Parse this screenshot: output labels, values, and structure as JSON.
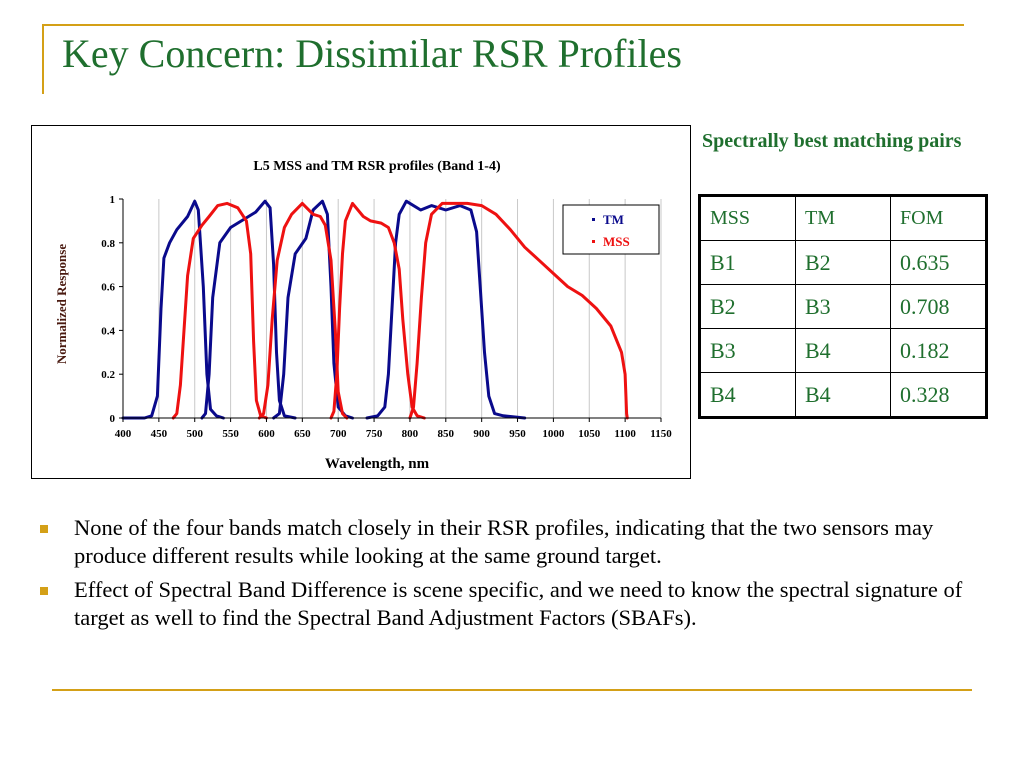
{
  "slide": {
    "title": "Key Concern: Dissimilar RSR Profiles",
    "accent_color": "#d4a017",
    "title_color": "#1f6f2e"
  },
  "table": {
    "caption": "Spectrally best matching pairs",
    "headers": [
      "MSS",
      "TM",
      "FOM"
    ],
    "rows": [
      [
        "B1",
        "B2",
        "0.635"
      ],
      [
        "B2",
        "B3",
        "0.708"
      ],
      [
        "B3",
        "B4",
        "0.182"
      ],
      [
        "B4",
        "B4",
        "0.328"
      ]
    ]
  },
  "bullets": [
    "None of the four bands match closely in their RSR profiles, indicating that the two sensors may produce different results while looking at the same ground target.",
    "Effect of Spectral Band Difference is scene specific, and we need to know the spectral signature of target as well to find the Spectral Band Adjustment Factors (SBAFs)."
  ],
  "chart_data": {
    "type": "line",
    "title": "L5 MSS and TM RSR profiles (Band 1-4)",
    "xlabel": "Wavelength, nm",
    "ylabel": "Normalized Response",
    "xlim": [
      400,
      1150
    ],
    "ylim": [
      0,
      1
    ],
    "xticks": [
      400,
      450,
      500,
      550,
      600,
      650,
      700,
      750,
      800,
      850,
      900,
      950,
      1000,
      1050,
      1100,
      1150
    ],
    "yticks": [
      0,
      0.2,
      0.4,
      0.6,
      0.8,
      1
    ],
    "ytick_labels": [
      "0",
      "0.2",
      "0.4",
      "0.6",
      "0.8",
      "1"
    ],
    "grid": "vertical",
    "legend": "top-right",
    "series": [
      {
        "name": "TM",
        "color": "#0a0a8c",
        "bands": [
          [
            [
              400,
              0
            ],
            [
              430,
              0
            ],
            [
              440,
              0.01
            ],
            [
              448,
              0.1
            ],
            [
              453,
              0.5
            ],
            [
              457,
              0.73
            ],
            [
              465,
              0.8
            ],
            [
              475,
              0.86
            ],
            [
              490,
              0.92
            ],
            [
              500,
              0.99
            ],
            [
              505,
              0.95
            ],
            [
              512,
              0.6
            ],
            [
              517,
              0.2
            ],
            [
              522,
              0.04
            ],
            [
              530,
              0.01
            ],
            [
              540,
              0
            ]
          ],
          [
            [
              510,
              0
            ],
            [
              515,
              0.02
            ],
            [
              520,
              0.2
            ],
            [
              525,
              0.55
            ],
            [
              535,
              0.8
            ],
            [
              550,
              0.87
            ],
            [
              565,
              0.9
            ],
            [
              585,
              0.94
            ],
            [
              598,
              0.99
            ],
            [
              605,
              0.96
            ],
            [
              610,
              0.7
            ],
            [
              614,
              0.3
            ],
            [
              618,
              0.08
            ],
            [
              625,
              0.01
            ],
            [
              640,
              0
            ]
          ],
          [
            [
              610,
              0
            ],
            [
              618,
              0.02
            ],
            [
              624,
              0.2
            ],
            [
              630,
              0.55
            ],
            [
              640,
              0.75
            ],
            [
              655,
              0.82
            ],
            [
              665,
              0.95
            ],
            [
              678,
              0.99
            ],
            [
              685,
              0.93
            ],
            [
              690,
              0.6
            ],
            [
              694,
              0.25
            ],
            [
              700,
              0.05
            ],
            [
              710,
              0.01
            ],
            [
              720,
              0
            ]
          ],
          [
            [
              740,
              0
            ],
            [
              755,
              0.01
            ],
            [
              765,
              0.05
            ],
            [
              770,
              0.2
            ],
            [
              775,
              0.5
            ],
            [
              780,
              0.8
            ],
            [
              785,
              0.93
            ],
            [
              795,
              0.99
            ],
            [
              815,
              0.95
            ],
            [
              830,
              0.97
            ],
            [
              850,
              0.95
            ],
            [
              870,
              0.97
            ],
            [
              885,
              0.95
            ],
            [
              893,
              0.85
            ],
            [
              898,
              0.6
            ],
            [
              904,
              0.3
            ],
            [
              910,
              0.1
            ],
            [
              918,
              0.02
            ],
            [
              930,
              0.01
            ],
            [
              960,
              0
            ]
          ]
        ]
      },
      {
        "name": "MSS",
        "color": "#ee1111",
        "bands": [
          [
            [
              470,
              0
            ],
            [
              475,
              0.02
            ],
            [
              480,
              0.15
            ],
            [
              485,
              0.4
            ],
            [
              490,
              0.65
            ],
            [
              498,
              0.82
            ],
            [
              510,
              0.88
            ],
            [
              520,
              0.92
            ],
            [
              532,
              0.97
            ],
            [
              545,
              0.98
            ],
            [
              560,
              0.96
            ],
            [
              572,
              0.9
            ],
            [
              578,
              0.75
            ],
            [
              582,
              0.35
            ],
            [
              586,
              0.08
            ],
            [
              592,
              0.01
            ],
            [
              600,
              0
            ]
          ],
          [
            [
              590,
              0
            ],
            [
              596,
              0.02
            ],
            [
              602,
              0.15
            ],
            [
              608,
              0.45
            ],
            [
              615,
              0.72
            ],
            [
              625,
              0.87
            ],
            [
              635,
              0.93
            ],
            [
              650,
              0.98
            ],
            [
              665,
              0.93
            ],
            [
              675,
              0.92
            ],
            [
              682,
              0.88
            ],
            [
              690,
              0.72
            ],
            [
              696,
              0.4
            ],
            [
              700,
              0.12
            ],
            [
              706,
              0.02
            ],
            [
              712,
              0
            ]
          ],
          [
            [
              690,
              0
            ],
            [
              694,
              0.03
            ],
            [
              698,
              0.2
            ],
            [
              702,
              0.5
            ],
            [
              706,
              0.75
            ],
            [
              710,
              0.9
            ],
            [
              720,
              0.98
            ],
            [
              735,
              0.92
            ],
            [
              745,
              0.9
            ],
            [
              760,
              0.89
            ],
            [
              770,
              0.87
            ],
            [
              778,
              0.8
            ],
            [
              785,
              0.68
            ],
            [
              790,
              0.45
            ],
            [
              797,
              0.2
            ],
            [
              803,
              0.05
            ],
            [
              810,
              0.01
            ],
            [
              820,
              0
            ]
          ],
          [
            [
              800,
              0
            ],
            [
              805,
              0.05
            ],
            [
              810,
              0.25
            ],
            [
              816,
              0.55
            ],
            [
              822,
              0.8
            ],
            [
              830,
              0.93
            ],
            [
              845,
              0.98
            ],
            [
              860,
              0.98
            ],
            [
              880,
              0.98
            ],
            [
              900,
              0.97
            ],
            [
              920,
              0.93
            ],
            [
              940,
              0.86
            ],
            [
              960,
              0.78
            ],
            [
              980,
              0.72
            ],
            [
              1000,
              0.66
            ],
            [
              1020,
              0.6
            ],
            [
              1040,
              0.56
            ],
            [
              1060,
              0.5
            ],
            [
              1080,
              0.42
            ],
            [
              1095,
              0.3
            ],
            [
              1100,
              0.2
            ],
            [
              1102,
              0.02
            ],
            [
              1103,
              0
            ]
          ]
        ]
      }
    ]
  }
}
